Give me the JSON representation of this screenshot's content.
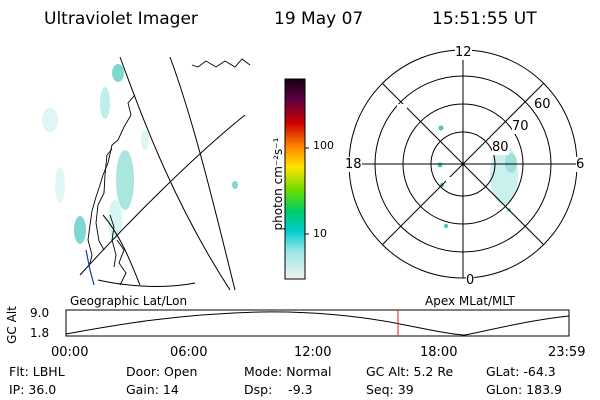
{
  "header": {
    "instrument": "Ultraviolet Imager",
    "date": "19 May 07",
    "time": "15:51:55 UT"
  },
  "colorbar": {
    "unit_label": "photon cm⁻²s⁻¹",
    "tick_labels": [
      "100",
      "10"
    ]
  },
  "polar_plot": {
    "mlt_labels": {
      "top": "12",
      "left": "18",
      "right": "6",
      "bottom": "0"
    },
    "lat_labels": [
      "60",
      "70",
      "80"
    ]
  },
  "projection_labels": {
    "left": "Geographic Lat/Lon",
    "right": "Apex MLat/MLT"
  },
  "altitude_plot": {
    "axis_title": "GC Alt",
    "y_ticks": [
      "9.0",
      "1.8"
    ],
    "x_ticks": [
      "00:00",
      "06:00",
      "12:00",
      "18:00",
      "23:59"
    ]
  },
  "status": {
    "filter": "Flt: LBHL",
    "ip": "IP: 36.0",
    "door": "Door: Open",
    "gain": "Gain: 14",
    "mode": "Mode: Normal",
    "dsp": "Dsp:    -9.3",
    "gc_alt": "GC Alt: 5.2 Re",
    "seq": "Seq: 39",
    "glat": "GLat: -64.3",
    "glon": "GLon: 183.9"
  },
  "colors": {
    "marker": "#cc2222",
    "coastline": "#000000",
    "aurora": "#9fe0dc"
  }
}
